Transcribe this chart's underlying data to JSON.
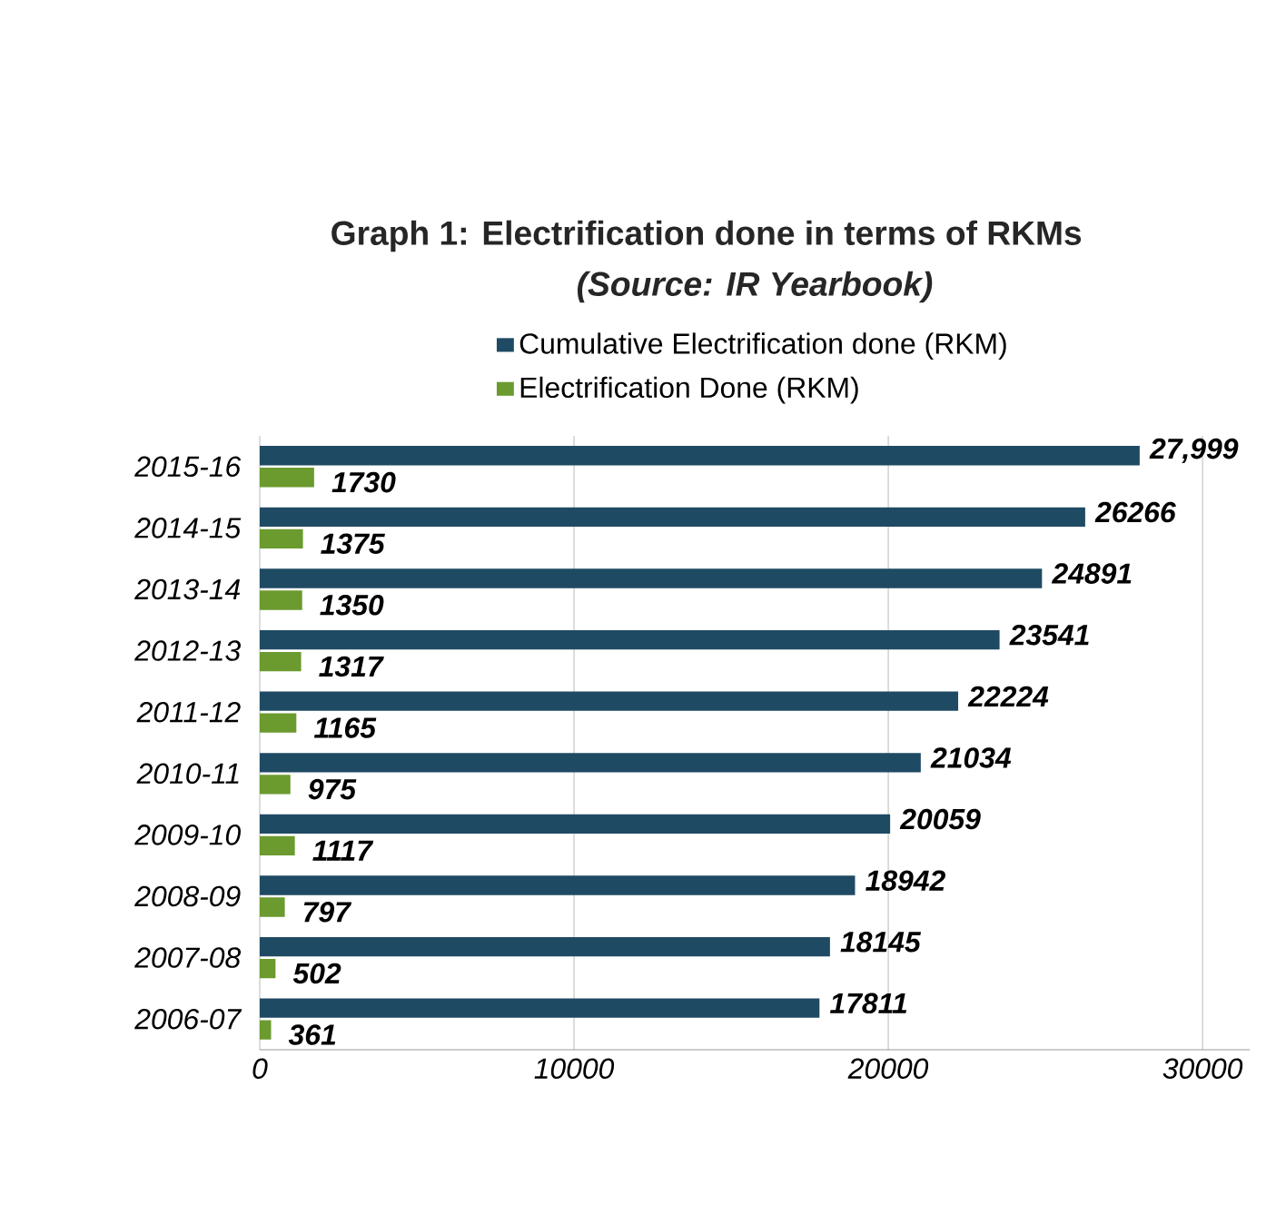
{
  "chart_data": {
    "type": "bar",
    "orientation": "horizontal",
    "title": "Graph 1: Electrification done in terms of RKMs",
    "subtitle": "(Source: IR Yearbook)",
    "categories": [
      "2015-16",
      "2014-15",
      "2013-14",
      "2012-13",
      "2011-12",
      "2010-11",
      "2009-10",
      "2008-09",
      "2007-08",
      "2006-07"
    ],
    "series": [
      {
        "name": "Cumulative Electrification done (RKM)",
        "color": "#1f4a63",
        "values": [
          27999,
          26266,
          24891,
          23541,
          22224,
          21034,
          20059,
          18942,
          18145,
          17811
        ],
        "value_labels": [
          "27,999",
          "26266",
          "24891",
          "23541",
          "22224",
          "21034",
          "20059",
          "18942",
          "18145",
          "17811"
        ]
      },
      {
        "name": "Electrification Done (RKM)",
        "color": "#6b9a2e",
        "values": [
          1730,
          1375,
          1350,
          1317,
          1165,
          975,
          1117,
          797,
          502,
          361
        ],
        "value_labels": [
          "1730",
          "1375",
          "1350",
          "1317",
          "1165",
          "975",
          "1117",
          "797",
          "502",
          "361"
        ]
      }
    ],
    "xlim": [
      0,
      31500
    ],
    "xticks": [
      0,
      10000,
      20000,
      30000
    ],
    "grid": "x",
    "legend": "top"
  }
}
